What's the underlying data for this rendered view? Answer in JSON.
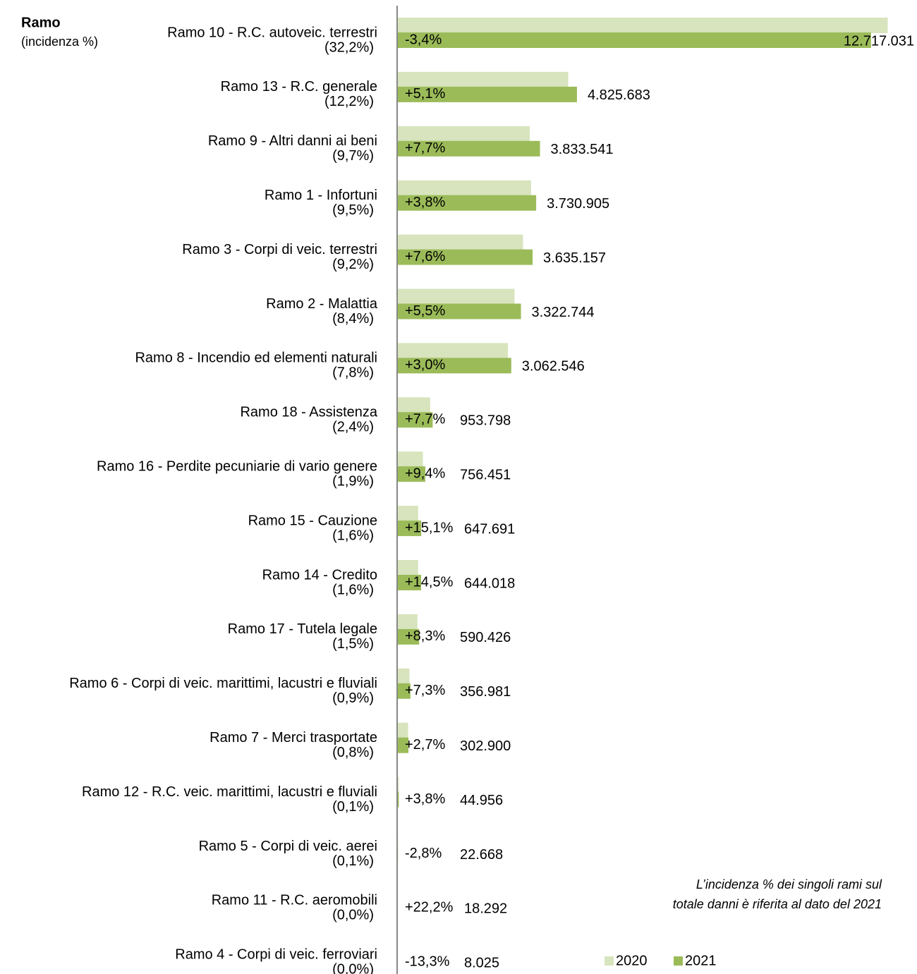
{
  "chart_data": {
    "type": "hbar",
    "header": "Ramo",
    "header_sub": "(incidenza %)",
    "note": [
      "L’incidenza % dei singoli rami sul",
      "totale danni è riferita al dato del 2021"
    ],
    "categories": [
      "Ramo 10 - R.C. autoveic. terrestri",
      "Ramo 13 - R.C. generale",
      "Ramo 9 - Altri danni ai beni",
      "Ramo 1 - Infortuni",
      "Ramo 3 - Corpi di veic. terrestri",
      "Ramo 2 - Malattia",
      "Ramo 8 - Incendio ed elementi naturali",
      "Ramo 18 - Assistenza",
      "Ramo 16 - Perdite pecuniarie di vario genere",
      "Ramo 15 - Cauzione",
      "Ramo 14 - Credito",
      "Ramo 17 - Tutela legale",
      "Ramo 6 - Corpi di veic. marittimi, lacustri e fluviali",
      "Ramo 7 - Merci trasportate",
      "Ramo 12 - R.C. veic. marittimi, lacustri e fluviali",
      "Ramo 5 - Corpi di veic. aerei",
      "Ramo 11 - R.C. aeromobili",
      "Ramo 4 - Corpi di veic. ferroviari"
    ],
    "shares": [
      "(32,2%)",
      "(12,2%)",
      "(9,7%)",
      "(9,5%)",
      "(9,2%)",
      "(8,4%)",
      "(7,8%)",
      "(2,4%)",
      "(1,9%)",
      "(1,6%)",
      "(1,6%)",
      "(1,5%)",
      "(0,9%)",
      "(0,8%)",
      "(0,1%)",
      "(0,1%)",
      "(0,0%)",
      "(0,0%)"
    ],
    "changes": [
      "-3,4%",
      "+5,1%",
      "+7,7%",
      "+3,8%",
      "+7,6%",
      "+5,5%",
      "+3,0%",
      "+7,7%",
      "+9,4%",
      "+15,1%",
      "+14,5%",
      "+8,3%",
      "+7,3%",
      "+2,7%",
      "+3,8%",
      "-2,8%",
      "+22,2%",
      "-13,3%"
    ],
    "series": [
      {
        "name": "2020",
        "color": "#d7e4bd",
        "values": [
          13164628,
          4591516,
          3559463,
          3594321,
          3378399,
          3149520,
          2973346,
          885606,
          691454,
          562720,
          562461,
          545176,
          332694,
          294937,
          43310,
          23321,
          14969,
          9256
        ]
      },
      {
        "name": "2021",
        "color": "#9bbb59",
        "values": [
          12717031,
          4825683,
          3833541,
          3730905,
          3635157,
          3322744,
          3062546,
          953798,
          756451,
          647691,
          644018,
          590426,
          356981,
          302900,
          44956,
          22668,
          18292,
          8025
        ],
        "value_labels": [
          "12.717.031",
          "4.825.683",
          "3.833.541",
          "3.730.905",
          "3.635.157",
          "3.322.744",
          "3.062.546",
          "953.798",
          "756.451",
          "647.691",
          "644.018",
          "590.426",
          "356.981",
          "302.900",
          "44.956",
          "22.668",
          "18.292",
          "8.025"
        ]
      }
    ],
    "xlim": [
      0,
      13250000
    ],
    "negative_color": "#ff0000",
    "legend": "bottom-right"
  }
}
